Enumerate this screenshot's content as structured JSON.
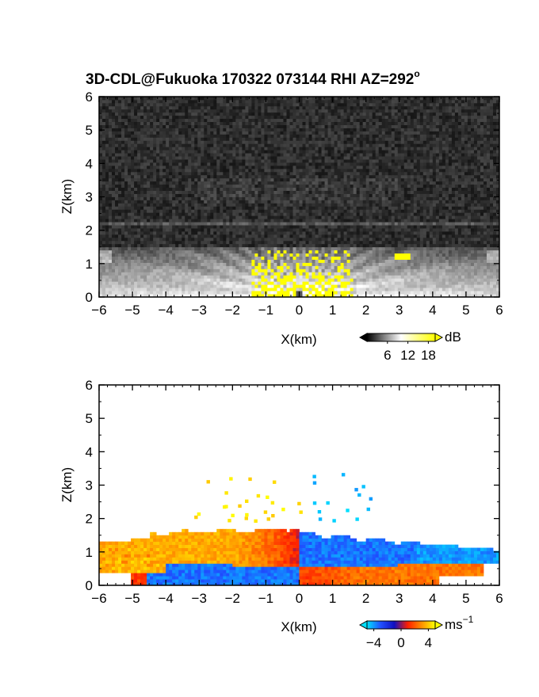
{
  "title": "3D-CDL@Fukuoka 170322 073144 RHI AZ=292",
  "title_superscript": "o",
  "chart_data": [
    {
      "type": "heatmap",
      "quantity": "backscatter intensity",
      "xlabel": "X(km)",
      "ylabel": "Z(km)",
      "xlim": [
        -6,
        6
      ],
      "ylim": [
        0,
        6
      ],
      "xticks": [
        "-6",
        "-5",
        "-4",
        "-3",
        "-2",
        "-1",
        "0",
        "1",
        "2",
        "3",
        "4",
        "5",
        "6"
      ],
      "yticks": [
        "0",
        "1",
        "2",
        "3",
        "4",
        "5",
        "6"
      ],
      "colorbar": {
        "unit": "dB",
        "ticks": [
          "6",
          "12",
          "18"
        ],
        "range": [
          0,
          20
        ],
        "colors": [
          "#000000",
          "#ffffff",
          "#ffff00"
        ]
      },
      "features": {
        "noise_floor_top_km": 6,
        "boundary_layer_top_km": 1.5,
        "elevated_layer_km": 2.2,
        "saturated_region": {
          "x_range_km": [
            -1.4,
            1.6
          ],
          "z_range_km": [
            0,
            1.45
          ]
        }
      },
      "grid": false,
      "colormap": "gray-to-yellow"
    },
    {
      "type": "heatmap",
      "quantity": "radial velocity",
      "xlabel": "X(km)",
      "ylabel": "Z(km)",
      "xlim": [
        -6,
        6
      ],
      "ylim": [
        0,
        6
      ],
      "xticks": [
        "-6",
        "-5",
        "-4",
        "-3",
        "-2",
        "-1",
        "0",
        "1",
        "2",
        "3",
        "4",
        "5",
        "6"
      ],
      "yticks": [
        "0",
        "1",
        "2",
        "3",
        "4",
        "5",
        "6"
      ],
      "colorbar": {
        "unit": "ms",
        "unit_superscript": "-1",
        "ticks": [
          "-4",
          "0",
          "4"
        ],
        "range": [
          -5,
          5
        ],
        "colors": [
          "#00e0ff",
          "#2050ff",
          "#1010c0",
          "#ff2000",
          "#ff9000",
          "#ffff00"
        ]
      },
      "features": {
        "upper_layer_top_km": 1.7,
        "shear_interface_km": 0.55,
        "left_upper_velocity_ms": 3.5,
        "left_lower_velocity_ms": -3.5,
        "right_upper_velocity_ms": -3.5,
        "right_lower_velocity_ms": 2.5
      },
      "grid": false,
      "colormap": "cyan-blue-red-yellow"
    }
  ]
}
